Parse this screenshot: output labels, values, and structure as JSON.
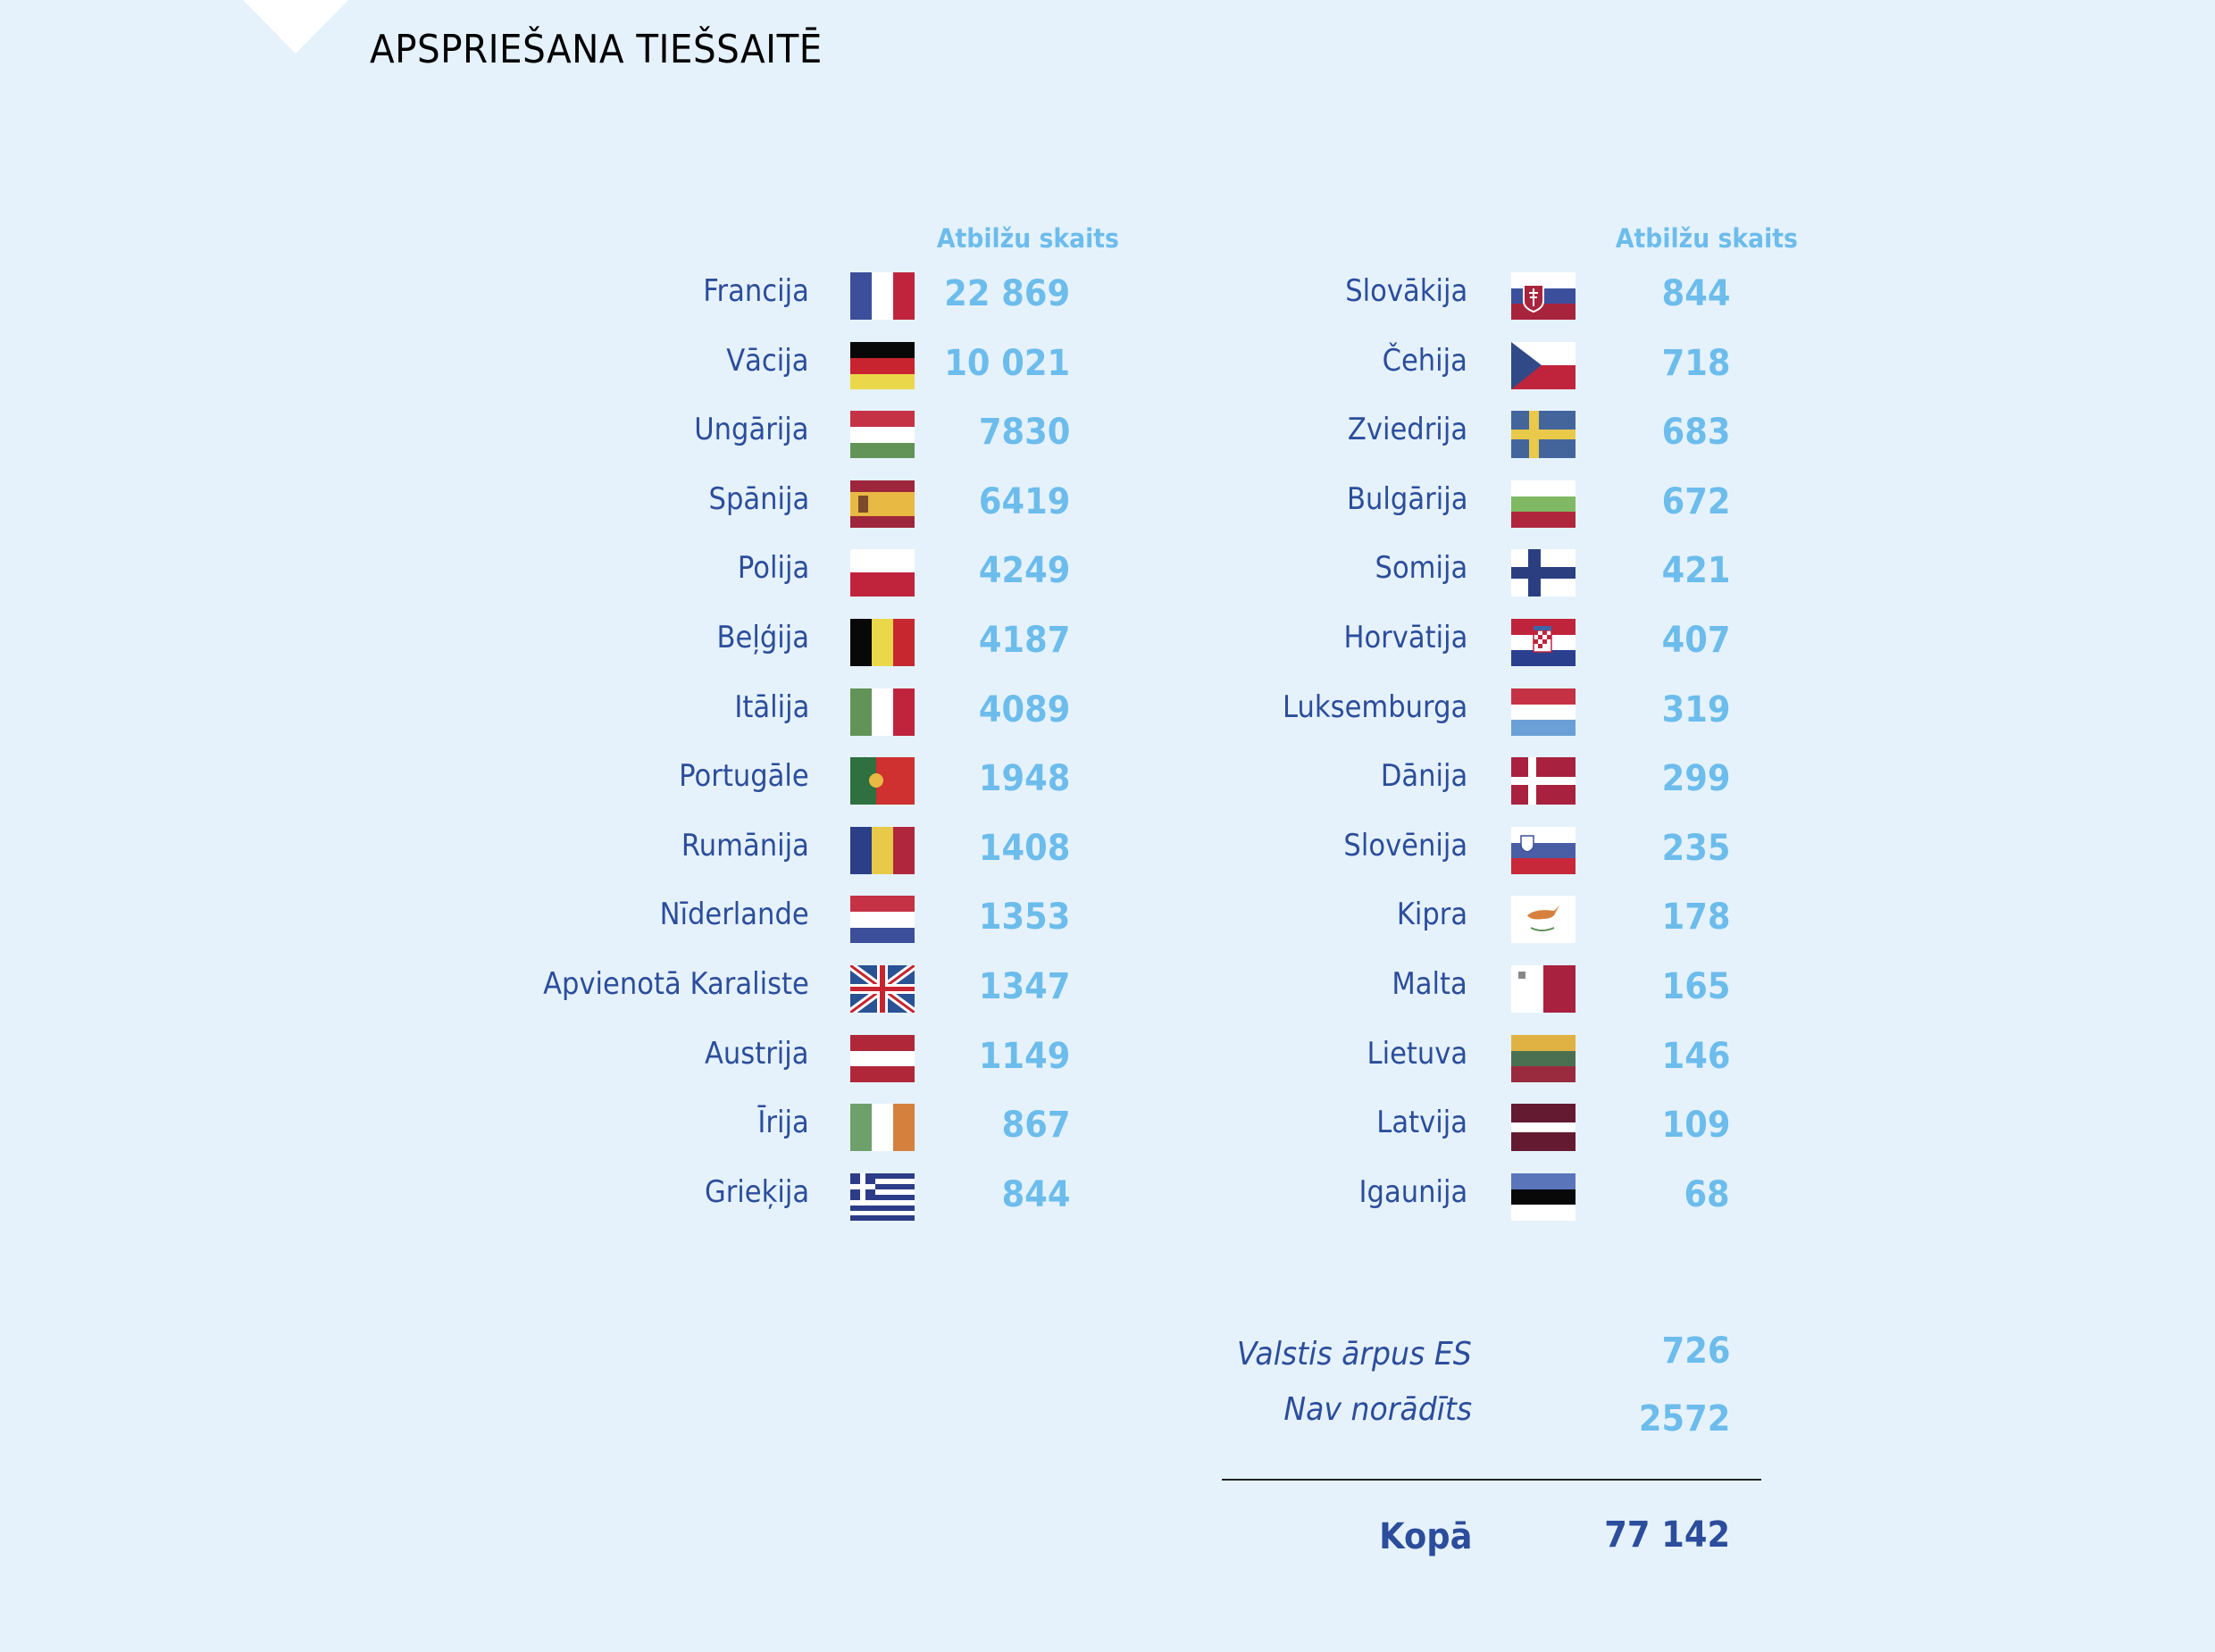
{
  "title": "APSPRIEŠANA TIEŠSAITĒ",
  "column_header": "Atbilžu skaits",
  "colors": {
    "background": "#e5f2fc",
    "name_text": "#2c4d9b",
    "number_text": "#6cbcec",
    "title_text": "#000000"
  },
  "left_column": [
    {
      "country": "Francija",
      "flag": "flag-france",
      "count": "22 869"
    },
    {
      "country": "Vācija",
      "flag": "flag-germany",
      "count": "10 021"
    },
    {
      "country": "Ungārija",
      "flag": "flag-hungary",
      "count": "7830"
    },
    {
      "country": "Spānija",
      "flag": "flag-spain",
      "count": "6419"
    },
    {
      "country": "Polija",
      "flag": "flag-poland",
      "count": "4249"
    },
    {
      "country": "Beļģija",
      "flag": "flag-belgium",
      "count": "4187"
    },
    {
      "country": "Itālija",
      "flag": "flag-italy",
      "count": "4089"
    },
    {
      "country": "Portugāle",
      "flag": "flag-portugal",
      "count": "1948"
    },
    {
      "country": "Rumānija",
      "flag": "flag-romania",
      "count": "1408"
    },
    {
      "country": "Nīderlande",
      "flag": "flag-netherlands",
      "count": "1353"
    },
    {
      "country": "Apvienotā Karaliste",
      "flag": "flag-united-kingdom",
      "count": "1347"
    },
    {
      "country": "Austrija",
      "flag": "flag-austria",
      "count": "1149"
    },
    {
      "country": "Īrija",
      "flag": "flag-ireland",
      "count": "867"
    },
    {
      "country": "Grieķija",
      "flag": "flag-greece",
      "count": "844"
    }
  ],
  "right_column": [
    {
      "country": "Slovākija",
      "flag": "flag-slovakia",
      "count": "844"
    },
    {
      "country": "Čehija",
      "flag": "flag-czechia",
      "count": "718"
    },
    {
      "country": "Zviedrija",
      "flag": "flag-sweden",
      "count": "683"
    },
    {
      "country": "Bulgārija",
      "flag": "flag-bulgaria",
      "count": "672"
    },
    {
      "country": "Somija",
      "flag": "flag-finland",
      "count": "421"
    },
    {
      "country": "Horvātija",
      "flag": "flag-croatia",
      "count": "407"
    },
    {
      "country": "Luksemburga",
      "flag": "flag-luxembourg",
      "count": "319"
    },
    {
      "country": "Dānija",
      "flag": "flag-denmark",
      "count": "299"
    },
    {
      "country": "Slovēnija",
      "flag": "flag-slovenia",
      "count": "235"
    },
    {
      "country": "Kipra",
      "flag": "flag-cyprus",
      "count": "178"
    },
    {
      "country": "Malta",
      "flag": "flag-malta",
      "count": "165"
    },
    {
      "country": "Lietuva",
      "flag": "flag-lithuania",
      "count": "146"
    },
    {
      "country": "Latvija",
      "flag": "flag-latvia",
      "count": "109"
    },
    {
      "country": "Igaunija",
      "flag": "flag-estonia",
      "count": "68"
    }
  ],
  "summary": [
    {
      "label": "Valstis ārpus ES",
      "count": "726"
    },
    {
      "label": "Nav norādīts",
      "count": "2572"
    }
  ],
  "total": {
    "label": "Kopā",
    "count": "77 142"
  }
}
